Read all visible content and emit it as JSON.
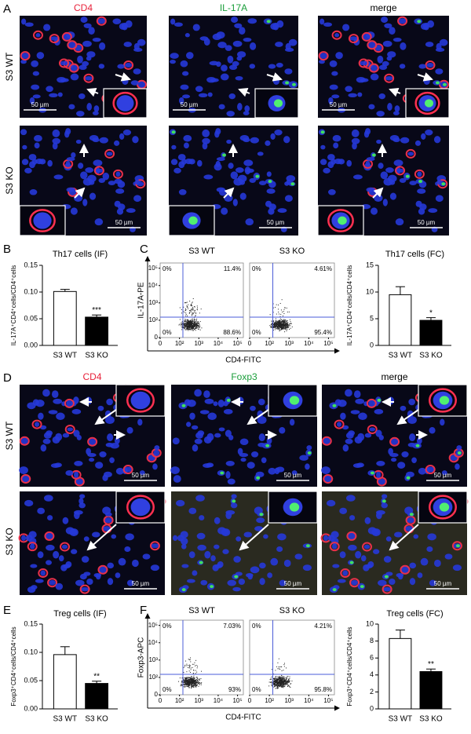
{
  "panel_labels": [
    "A",
    "B",
    "C",
    "D",
    "E",
    "F"
  ],
  "panel_a": {
    "columns": [
      "CD4",
      "IL-17A",
      "merge"
    ],
    "rows": [
      "S3 WT",
      "S3 KO"
    ],
    "scale_bar": "50 µm"
  },
  "panel_d": {
    "columns": [
      "CD4",
      "Foxp3",
      "merge"
    ],
    "rows": [
      "S3 WT",
      "S3 KO"
    ],
    "scale_bar": "50 µm"
  },
  "chart_data": [
    {
      "type": "bar",
      "title": "Th17 cells (IF)",
      "ylabel": "IL-17A⁺CD4⁺cells/CD4⁺cells",
      "categories": [
        "S3 WT",
        "S3 KO"
      ],
      "values": [
        0.101,
        0.053
      ],
      "errors": [
        0.004,
        0.004
      ],
      "colors": [
        "#ffffff",
        "#000000"
      ],
      "significance": "***",
      "ylim": [
        0,
        0.15
      ],
      "yticks": [
        {
          "value": 0,
          "label": "0.00"
        },
        {
          "value": 0.05,
          "label": "0.05"
        },
        {
          "value": 0.1,
          "label": "0.10"
        },
        {
          "value": 0.15,
          "label": "0.15"
        }
      ]
    },
    {
      "type": "flow",
      "xlabel": "CD4-FITC",
      "ylabel": "IL-17A-PE",
      "plots": [
        {
          "title": "S3 WT",
          "quadrant_labels": [
            "0%",
            "11.4%",
            "0%",
            "88.6%"
          ]
        },
        {
          "title": "S3 KO",
          "quadrant_labels": [
            "0%",
            "4.61%",
            "0%",
            "95.4%"
          ]
        }
      ],
      "gate": {
        "x": 150,
        "y": 150
      },
      "color": "#4a5bd8",
      "xlim": [
        0,
        200000
      ],
      "ylim": [
        0,
        200000
      ],
      "xticks": [
        0,
        {
          "value": 100,
          "label": "10²"
        },
        {
          "value": 1000,
          "label": "10³"
        },
        {
          "value": 10000,
          "label": "10⁴"
        },
        {
          "value": 100000,
          "label": "10⁵"
        }
      ],
      "yticks": [
        0,
        {
          "value": 100,
          "label": "10²"
        },
        {
          "value": 1000,
          "label": "10³"
        },
        {
          "value": 10000,
          "label": "10⁴"
        },
        {
          "value": 100000,
          "label": "10⁵"
        }
      ]
    },
    {
      "type": "bar",
      "title": "Th17 cells (FC)",
      "ylabel": "IL-17A⁺CD4⁺cells/CD4⁺cells",
      "categories": [
        "S3 WT",
        "S3 KO"
      ],
      "values": [
        9.5,
        4.7
      ],
      "errors": [
        1.5,
        0.5
      ],
      "colors": [
        "#ffffff",
        "#000000"
      ],
      "significance": "*",
      "ylim": [
        0,
        15
      ],
      "yticks": [
        0,
        5,
        10,
        15
      ]
    },
    {
      "type": "bar",
      "title": "Treg cells (IF)",
      "ylabel": "Foxp3⁺CD4⁺cells/CD4⁺cells",
      "categories": [
        "S3 WT",
        "S3 KO"
      ],
      "values": [
        0.096,
        0.045
      ],
      "errors": [
        0.014,
        0.004
      ],
      "colors": [
        "#ffffff",
        "#000000"
      ],
      "significance": "**",
      "ylim": [
        0,
        0.15
      ],
      "yticks": [
        {
          "value": 0,
          "label": "0.00"
        },
        {
          "value": 0.05,
          "label": "0.05"
        },
        {
          "value": 0.1,
          "label": "0.10"
        },
        {
          "value": 0.15,
          "label": "0.15"
        }
      ]
    },
    {
      "type": "flow",
      "xlabel": "CD4-FITC",
      "ylabel": "Foxp3-APC",
      "plots": [
        {
          "title": "S3 WT",
          "quadrant_labels": [
            "0%",
            "7.03%",
            "0%",
            "93%"
          ]
        },
        {
          "title": "S3 KO",
          "quadrant_labels": [
            "0%",
            "4.21%",
            "0%",
            "95.8%"
          ]
        }
      ],
      "gate": {
        "x": 150,
        "y": 150
      },
      "color": "#4a5bd8",
      "xlim": [
        0,
        200000
      ],
      "ylim": [
        0,
        200000
      ],
      "xticks": [
        0,
        {
          "value": 100,
          "label": "10²"
        },
        {
          "value": 1000,
          "label": "10³"
        },
        {
          "value": 10000,
          "label": "10⁴"
        },
        {
          "value": 100000,
          "label": "10⁵"
        }
      ],
      "yticks": [
        0,
        {
          "value": 100,
          "label": "10²"
        },
        {
          "value": 1000,
          "label": "10³"
        },
        {
          "value": 10000,
          "label": "10⁴"
        },
        {
          "value": 100000,
          "label": "10⁵"
        }
      ]
    },
    {
      "type": "bar",
      "title": "Treg cells (FC)",
      "ylabel": "Foxp3⁺CD4⁺cells/CD4⁺cells",
      "categories": [
        "S3 WT",
        "S3 KO"
      ],
      "values": [
        8.3,
        4.4
      ],
      "errors": [
        1.0,
        0.3
      ],
      "colors": [
        "#ffffff",
        "#000000"
      ],
      "significance": "**",
      "ylim": [
        0,
        10
      ],
      "yticks": [
        0,
        2,
        4,
        6,
        8,
        10
      ]
    }
  ]
}
